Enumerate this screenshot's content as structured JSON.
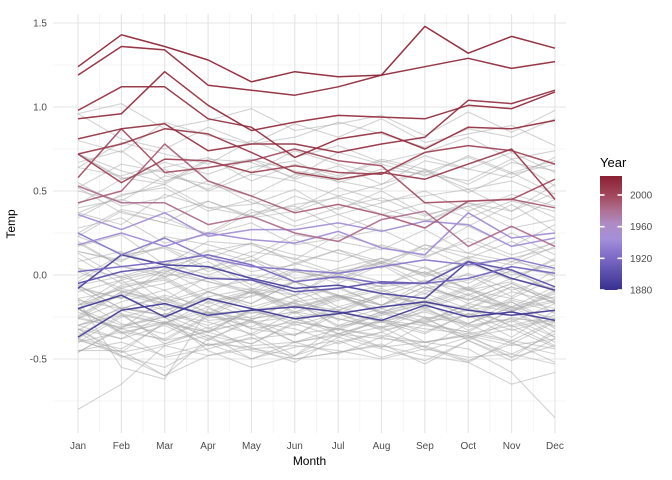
{
  "chart_data": {
    "type": "line",
    "title": "",
    "xlabel": "Month",
    "ylabel": "Temp",
    "categories": [
      "Jan",
      "Feb",
      "Mar",
      "Apr",
      "May",
      "Jun",
      "Jul",
      "Aug",
      "Sep",
      "Oct",
      "Nov",
      "Dec"
    ],
    "yticks": {
      "values": [
        -0.5,
        0.0,
        0.5,
        1.0,
        1.5
      ],
      "labels": [
        "-0.5",
        "0.0",
        "0.5",
        "1.0",
        "1.5"
      ]
    },
    "ylim": [
      -0.95,
      1.57
    ],
    "grid": {
      "on": true,
      "major_step": 0.5,
      "minor_step": 0.25,
      "major_color": "#e4e4e4",
      "minor_color": "#f0f0f0"
    },
    "style": {
      "background": "#ffffff",
      "gray_line_color": "#a8a8a8",
      "gray_line_opacity": 0.5,
      "axis_text_color": "#4d4d4d",
      "axis_title_color": "#000000"
    },
    "legend": {
      "title": "Year",
      "position": "right",
      "tick_labels": [
        "2000",
        "1960",
        "1920",
        "1880"
      ],
      "tick_years": [
        2000,
        1960,
        1920,
        1880
      ],
      "year_domain": [
        1880,
        2024
      ],
      "gradient_stops": [
        {
          "t": 0.0,
          "color": "#37308f"
        },
        {
          "t": 0.28,
          "color": "#7b6ac6"
        },
        {
          "t": 0.45,
          "color": "#a48fd8"
        },
        {
          "t": 0.58,
          "color": "#ae8cc4"
        },
        {
          "t": 0.7,
          "color": "#af6f92"
        },
        {
          "t": 0.82,
          "color": "#a34a60"
        },
        {
          "t": 1.0,
          "color": "#8b2030"
        }
      ]
    },
    "highlight_series": [
      {
        "year": 1884,
        "values": [
          -0.2,
          -0.12,
          -0.25,
          -0.14,
          -0.2,
          -0.26,
          -0.23,
          -0.19,
          -0.16,
          -0.21,
          -0.24,
          -0.21
        ]
      },
      {
        "year": 1886,
        "values": [
          -0.37,
          -0.21,
          -0.17,
          -0.24,
          -0.21,
          -0.19,
          -0.22,
          -0.27,
          -0.18,
          -0.25,
          -0.22,
          -0.27
        ]
      },
      {
        "year": 1889,
        "values": [
          -0.08,
          0.12,
          0.06,
          0.05,
          -0.02,
          -0.08,
          -0.06,
          -0.11,
          -0.14,
          0.08,
          -0.02,
          -0.09
        ]
      },
      {
        "year": 1900,
        "values": [
          -0.05,
          0.02,
          0.05,
          -0.02,
          -0.03,
          -0.1,
          -0.08,
          -0.04,
          -0.05,
          0.08,
          0.03,
          -0.07
        ]
      },
      {
        "year": 1915,
        "values": [
          0.02,
          0.05,
          0.08,
          0.12,
          0.06,
          -0.04,
          -0.01,
          -0.05,
          -0.05,
          -0.02,
          0.05,
          0.01
        ]
      },
      {
        "year": 1926,
        "values": [
          0.25,
          0.12,
          0.22,
          0.1,
          0.05,
          0.03,
          0.01,
          0.05,
          0.09,
          0.06,
          0.1,
          0.04
        ]
      },
      {
        "year": 1941,
        "values": [
          0.18,
          0.25,
          0.17,
          0.25,
          0.21,
          0.19,
          0.26,
          0.16,
          0.12,
          0.37,
          0.22,
          0.25
        ]
      },
      {
        "year": 1944,
        "values": [
          0.36,
          0.27,
          0.37,
          0.23,
          0.27,
          0.27,
          0.31,
          0.26,
          0.32,
          0.3,
          0.17,
          0.22
        ]
      },
      {
        "year": 1983,
        "values": [
          0.53,
          0.43,
          0.43,
          0.3,
          0.35,
          0.25,
          0.2,
          0.33,
          0.38,
          0.17,
          0.29,
          0.17
        ]
      },
      {
        "year": 1990,
        "values": [
          0.43,
          0.5,
          0.78,
          0.56,
          0.47,
          0.37,
          0.42,
          0.36,
          0.28,
          0.44,
          0.45,
          0.4
        ]
      },
      {
        "year": 1998,
        "values": [
          0.58,
          0.87,
          0.61,
          0.64,
          0.68,
          0.75,
          0.68,
          0.65,
          0.43,
          0.44,
          0.45,
          0.57
        ]
      },
      {
        "year": 2005,
        "values": [
          0.72,
          0.55,
          0.69,
          0.68,
          0.61,
          0.65,
          0.61,
          0.6,
          0.73,
          0.77,
          0.74,
          0.66
        ]
      },
      {
        "year": 2010,
        "values": [
          0.72,
          0.78,
          0.87,
          0.84,
          0.73,
          0.61,
          0.57,
          0.61,
          0.57,
          0.66,
          0.75,
          0.45
        ]
      },
      {
        "year": 2015,
        "values": [
          0.81,
          0.87,
          0.9,
          0.74,
          0.78,
          0.78,
          0.73,
          0.78,
          0.82,
          1.04,
          1.02,
          1.1
        ]
      },
      {
        "year": 2017,
        "values": [
          0.98,
          1.12,
          1.12,
          0.93,
          0.88,
          0.7,
          0.81,
          0.85,
          0.75,
          0.88,
          0.87,
          0.92
        ]
      },
      {
        "year": 2019,
        "values": [
          0.93,
          0.96,
          1.21,
          1.01,
          0.86,
          0.91,
          0.95,
          0.94,
          0.93,
          1.01,
          0.99,
          1.09
        ]
      },
      {
        "year": 2020,
        "values": [
          1.19,
          1.36,
          1.34,
          1.13,
          1.1,
          1.07,
          1.12,
          1.19,
          1.24,
          1.29,
          1.23,
          1.27
        ]
      },
      {
        "year": 2023,
        "values": [
          1.24,
          1.43,
          1.36,
          1.28,
          1.15,
          1.21,
          1.18,
          1.19,
          1.48,
          1.32,
          1.42,
          1.35
        ]
      }
    ],
    "wiggle_patterns": [
      [
        0.0,
        0.05,
        -0.03,
        0.04,
        -0.05,
        0.02,
        0.06,
        -0.04,
        0.03,
        -0.06,
        0.04,
        -0.02
      ],
      [
        -0.06,
        0.08,
        0.12,
        -0.02,
        0.05,
        -0.08,
        0.0,
        0.06,
        -0.05,
        0.03,
        -0.07,
        0.05
      ],
      [
        0.1,
        -0.05,
        0.02,
        0.08,
        -0.06,
        0.04,
        -0.03,
        0.07,
        0.01,
        -0.08,
        0.05,
        0.0
      ],
      [
        -0.12,
        0.03,
        0.09,
        -0.04,
        0.06,
        0.02,
        -0.07,
        0.0,
        0.08,
        -0.03,
        0.02,
        -0.09
      ],
      [
        0.05,
        0.12,
        -0.06,
        0.02,
        0.07,
        -0.05,
        0.03,
        -0.08,
        0.06,
        0.01,
        -0.04,
        0.08
      ],
      [
        -0.04,
        -0.1,
        0.05,
        0.0,
        -0.07,
        0.06,
        0.02,
        -0.03,
        0.09,
        -0.05,
        0.07,
        -0.06
      ],
      [
        0.08,
        -0.02,
        -0.09,
        0.05,
        0.03,
        -0.06,
        0.09,
        0.02,
        -0.05,
        0.07,
        -0.03,
        0.04
      ],
      [
        -0.08,
        0.06,
        0.01,
        -0.09,
        0.04,
        0.08,
        -0.05,
        0.03,
        0.0,
        -0.04,
        0.09,
        -0.07
      ]
    ],
    "background_series": [
      [
        1881,
        -0.18,
        0,
        0
      ],
      [
        1882,
        -0.15,
        1,
        0
      ],
      [
        1885,
        -0.3,
        2,
        0
      ],
      [
        1887,
        -0.28,
        3,
        0
      ],
      [
        1890,
        -0.35,
        4,
        0
      ],
      [
        1892,
        -0.28,
        5,
        0
      ],
      [
        1894,
        -0.3,
        6,
        0
      ],
      [
        1895,
        -0.25,
        7,
        0
      ],
      [
        1896,
        -0.15,
        0,
        1
      ],
      [
        1897,
        -0.12,
        1,
        1
      ],
      [
        1899,
        -0.15,
        2,
        1
      ],
      [
        1902,
        -0.26,
        3,
        1
      ],
      [
        1903,
        -0.34,
        4,
        1
      ],
      [
        1904,
        -0.44,
        5,
        1
      ],
      [
        1906,
        -0.22,
        6,
        1
      ],
      [
        1907,
        -0.4,
        7,
        1
      ],
      [
        1909,
        -0.45,
        0,
        0
      ],
      [
        1910,
        -0.4,
        1,
        0
      ],
      [
        1911,
        -0.44,
        2,
        0
      ],
      [
        1913,
        -0.34,
        3,
        0
      ],
      [
        1914,
        -0.15,
        4,
        0
      ],
      [
        1916,
        -0.34,
        5,
        0
      ],
      [
        1917,
        -0.46,
        6,
        0
      ],
      [
        1918,
        -0.3,
        7,
        0
      ],
      [
        1920,
        -0.26,
        0,
        1
      ],
      [
        1922,
        -0.26,
        1,
        1
      ],
      [
        1924,
        -0.26,
        2,
        1
      ],
      [
        1925,
        -0.2,
        3,
        1
      ],
      [
        1928,
        -0.2,
        4,
        1
      ],
      [
        1929,
        -0.34,
        5,
        1
      ],
      [
        1931,
        -0.1,
        6,
        1
      ],
      [
        1933,
        -0.28,
        7,
        1
      ],
      [
        1934,
        -0.14,
        0,
        0
      ],
      [
        1936,
        -0.14,
        1,
        0
      ],
      [
        1938,
        0.0,
        2,
        0
      ],
      [
        1940,
        0.08,
        3,
        0
      ],
      [
        1943,
        0.12,
        4,
        0
      ],
      [
        1946,
        -0.04,
        5,
        0
      ],
      [
        1948,
        -0.06,
        6,
        0
      ],
      [
        1950,
        -0.16,
        7,
        0
      ],
      [
        1952,
        0.04,
        0,
        1
      ],
      [
        1954,
        -0.12,
        1,
        1
      ],
      [
        1956,
        -0.16,
        2,
        1
      ],
      [
        1958,
        0.08,
        3,
        1
      ],
      [
        1960,
        -0.02,
        4,
        1
      ],
      [
        1962,
        0.04,
        5,
        1
      ],
      [
        1964,
        -0.18,
        6,
        1
      ],
      [
        1966,
        -0.04,
        7,
        1
      ],
      [
        1968,
        -0.06,
        0,
        0
      ],
      [
        1970,
        0.04,
        1,
        0
      ],
      [
        1972,
        0.03,
        2,
        0
      ],
      [
        1974,
        -0.06,
        3,
        0
      ],
      [
        1976,
        -0.1,
        4,
        0
      ],
      [
        1977,
        0.18,
        5,
        0
      ],
      [
        1979,
        0.15,
        6,
        0
      ],
      [
        1981,
        0.33,
        7,
        0
      ],
      [
        1982,
        0.14,
        0,
        1
      ],
      [
        1985,
        0.13,
        1,
        1
      ],
      [
        1987,
        0.33,
        2,
        1
      ],
      [
        1988,
        0.4,
        3,
        1
      ],
      [
        1991,
        0.42,
        4,
        1
      ],
      [
        1993,
        0.24,
        5,
        1
      ],
      [
        1995,
        0.45,
        6,
        1
      ],
      [
        1997,
        0.47,
        7,
        1
      ],
      [
        1999,
        0.4,
        0,
        0
      ],
      [
        2000,
        0.4,
        1,
        0
      ],
      [
        2002,
        0.62,
        2,
        0
      ],
      [
        2004,
        0.54,
        3,
        0
      ],
      [
        2006,
        0.62,
        4,
        0
      ],
      [
        2008,
        0.54,
        5,
        0
      ],
      [
        2009,
        0.64,
        6,
        0
      ],
      [
        2011,
        0.6,
        7,
        0
      ],
      [
        2012,
        0.64,
        0,
        1
      ],
      [
        2013,
        0.66,
        1,
        1
      ],
      [
        2014,
        0.74,
        2,
        1
      ],
      [
        2018,
        0.84,
        3,
        1
      ],
      [
        2021,
        0.85,
        4,
        1
      ],
      [
        2022,
        0.92,
        5,
        1
      ]
    ],
    "background_series_explicit": [
      {
        "year": 1891,
        "values": [
          -0.32,
          -0.48,
          -0.6,
          -0.38,
          -0.45,
          -0.5,
          -0.46,
          -0.42,
          -0.48,
          -0.52,
          -0.65,
          -0.58
        ]
      },
      {
        "year": 1893,
        "values": [
          -0.8,
          -0.65,
          -0.42,
          -0.48,
          -0.42,
          -0.4,
          -0.35,
          -0.38,
          -0.4,
          -0.36,
          -0.42,
          -0.38
        ]
      },
      {
        "year": 1905,
        "values": [
          -0.3,
          -0.38,
          -0.3,
          -0.42,
          -0.38,
          -0.35,
          -0.32,
          -0.36,
          -0.4,
          -0.44,
          -0.58,
          -0.85
        ]
      },
      {
        "year": 1908,
        "values": [
          -0.45,
          -0.45,
          -0.6,
          -0.48,
          -0.44,
          -0.42,
          -0.45,
          -0.5,
          -0.44,
          -0.49,
          -0.47,
          -0.53
        ]
      },
      {
        "year": 1921,
        "values": [
          -0.15,
          -0.55,
          -0.62,
          -0.2,
          -0.28,
          -0.25,
          -0.22,
          -0.28,
          -0.22,
          -0.3,
          -0.26,
          -0.28
        ]
      },
      {
        "year": 1935,
        "values": [
          -0.2,
          -0.3,
          -0.25,
          -0.45,
          -0.55,
          -0.48,
          -0.3,
          -0.28,
          -0.32,
          -0.35,
          -0.4,
          -0.52
        ]
      }
    ]
  }
}
